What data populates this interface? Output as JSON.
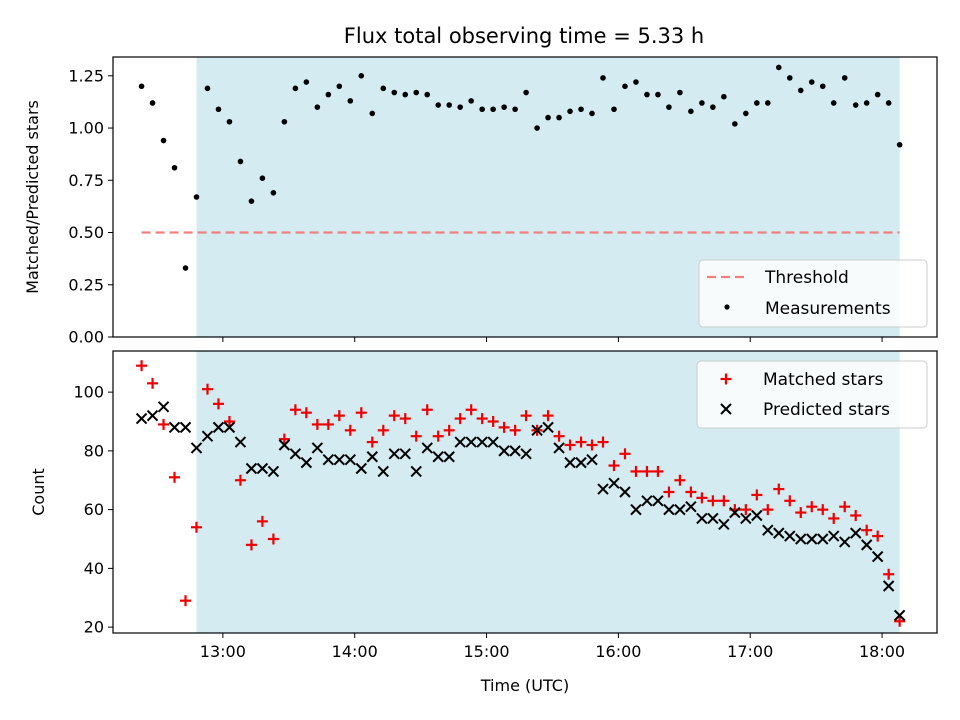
{
  "title": "Flux total observing time = 5.33 h",
  "colors": {
    "observing_span": "#d4ebf1",
    "threshold": "#f08080",
    "measurement": "#000000",
    "matched": "#ee0000",
    "predicted": "#000000"
  },
  "chart_data": [
    {
      "type": "scatter",
      "name": "ratio",
      "ylabel": "Matched/Predicted stars",
      "xlim": [
        "12:10",
        "18:25"
      ],
      "ylim": [
        0,
        1.34
      ],
      "yticks": [
        "0.00",
        "0.25",
        "0.50",
        "0.75",
        "1.00",
        "1.25"
      ],
      "ytick_values": [
        0,
        0.25,
        0.5,
        0.75,
        1.0,
        1.25
      ],
      "observing_span": [
        "12:48",
        "18:08"
      ],
      "legend_position": "lower-right",
      "threshold": {
        "label": "Threshold",
        "value": 0.5,
        "x_range": [
          "12:23",
          "18:08"
        ],
        "style": "dashed"
      },
      "measurements": {
        "label": "Measurements",
        "x": [
          "12:23",
          "12:28",
          "12:33",
          "12:38",
          "12:43",
          "12:48",
          "12:53",
          "12:58",
          "13:03",
          "13:08",
          "13:13",
          "13:18",
          "13:23",
          "13:28",
          "13:33",
          "13:38",
          "13:43",
          "13:48",
          "13:53",
          "13:58",
          "14:03",
          "14:08",
          "14:13",
          "14:18",
          "14:23",
          "14:28",
          "14:33",
          "14:38",
          "14:43",
          "14:48",
          "14:53",
          "14:58",
          "15:03",
          "15:08",
          "15:13",
          "15:18",
          "15:23",
          "15:28",
          "15:33",
          "15:38",
          "15:43",
          "15:48",
          "15:53",
          "15:58",
          "16:03",
          "16:08",
          "16:13",
          "16:18",
          "16:23",
          "16:28",
          "16:33",
          "16:38",
          "16:43",
          "16:48",
          "16:53",
          "16:58",
          "17:03",
          "17:08",
          "17:13",
          "17:18",
          "17:23",
          "17:28",
          "17:33",
          "17:38",
          "17:43",
          "17:48",
          "17:53",
          "17:58",
          "18:03",
          "18:08"
        ],
        "y": [
          1.2,
          1.12,
          0.94,
          0.81,
          0.33,
          0.67,
          1.19,
          1.09,
          1.03,
          0.84,
          0.65,
          0.76,
          0.69,
          1.03,
          1.19,
          1.22,
          1.1,
          1.16,
          1.2,
          1.13,
          1.25,
          1.07,
          1.19,
          1.17,
          1.16,
          1.17,
          1.16,
          1.11,
          1.11,
          1.1,
          1.13,
          1.09,
          1.09,
          1.1,
          1.09,
          1.17,
          1.0,
          1.05,
          1.05,
          1.08,
          1.09,
          1.07,
          1.24,
          1.09,
          1.2,
          1.22,
          1.16,
          1.16,
          1.1,
          1.17,
          1.08,
          1.12,
          1.1,
          1.15,
          1.02,
          1.07,
          1.12,
          1.12,
          1.29,
          1.24,
          1.18,
          1.22,
          1.2,
          1.12,
          1.24,
          1.11,
          1.12,
          1.16,
          1.12,
          0.92
        ]
      }
    },
    {
      "type": "scatter",
      "name": "counts",
      "ylabel": "Count",
      "xlabel": "Time (UTC)",
      "xlim": [
        "12:10",
        "18:25"
      ],
      "ylim": [
        18,
        114
      ],
      "yticks": [
        "20",
        "40",
        "60",
        "80",
        "100"
      ],
      "ytick_values": [
        20,
        40,
        60,
        80,
        100
      ],
      "xticks": [
        "13:00",
        "14:00",
        "15:00",
        "16:00",
        "17:00",
        "18:00"
      ],
      "observing_span": [
        "12:48",
        "18:08"
      ],
      "legend_position": "upper-right",
      "x": [
        "12:23",
        "12:28",
        "12:33",
        "12:38",
        "12:43",
        "12:48",
        "12:53",
        "12:58",
        "13:03",
        "13:08",
        "13:13",
        "13:18",
        "13:23",
        "13:28",
        "13:33",
        "13:38",
        "13:43",
        "13:48",
        "13:53",
        "13:58",
        "14:03",
        "14:08",
        "14:13",
        "14:18",
        "14:23",
        "14:28",
        "14:33",
        "14:38",
        "14:43",
        "14:48",
        "14:53",
        "14:58",
        "15:03",
        "15:08",
        "15:13",
        "15:18",
        "15:23",
        "15:28",
        "15:33",
        "15:38",
        "15:43",
        "15:48",
        "15:53",
        "15:58",
        "16:03",
        "16:08",
        "16:13",
        "16:18",
        "16:23",
        "16:28",
        "16:33",
        "16:38",
        "16:43",
        "16:48",
        "16:53",
        "16:58",
        "17:03",
        "17:08",
        "17:13",
        "17:18",
        "17:23",
        "17:28",
        "17:33",
        "17:38",
        "17:43",
        "17:48",
        "17:53",
        "17:58",
        "18:03",
        "18:08"
      ],
      "series": [
        {
          "name": "Matched stars",
          "marker": "plus",
          "values": [
            109,
            103,
            89,
            71,
            29,
            54,
            101,
            96,
            90,
            70,
            48,
            56,
            50,
            84,
            94,
            93,
            89,
            89,
            92,
            87,
            93,
            83,
            87,
            92,
            91,
            85,
            94,
            85,
            87,
            91,
            94,
            91,
            90,
            88,
            87,
            92,
            87,
            92,
            85,
            82,
            83,
            82,
            83,
            75,
            79,
            73,
            73,
            73,
            66,
            70,
            66,
            64,
            63,
            63,
            60,
            60,
            65,
            60,
            67,
            63,
            59,
            61,
            60,
            57,
            61,
            58,
            53,
            51,
            38,
            22
          ]
        },
        {
          "name": "Predicted stars",
          "marker": "cross",
          "values": [
            91,
            92,
            95,
            88,
            88,
            81,
            85,
            88,
            88,
            83,
            74,
            74,
            73,
            82,
            79,
            76,
            81,
            77,
            77,
            77,
            74,
            78,
            73,
            79,
            79,
            73,
            81,
            78,
            78,
            83,
            83,
            83,
            83,
            80,
            80,
            79,
            87,
            88,
            81,
            76,
            76,
            77,
            67,
            69,
            66,
            60,
            63,
            63,
            60,
            60,
            61,
            57,
            57,
            55,
            59,
            57,
            58,
            53,
            52,
            51,
            50,
            50,
            50,
            51,
            49,
            52,
            48,
            44,
            34,
            24
          ]
        }
      ]
    }
  ]
}
